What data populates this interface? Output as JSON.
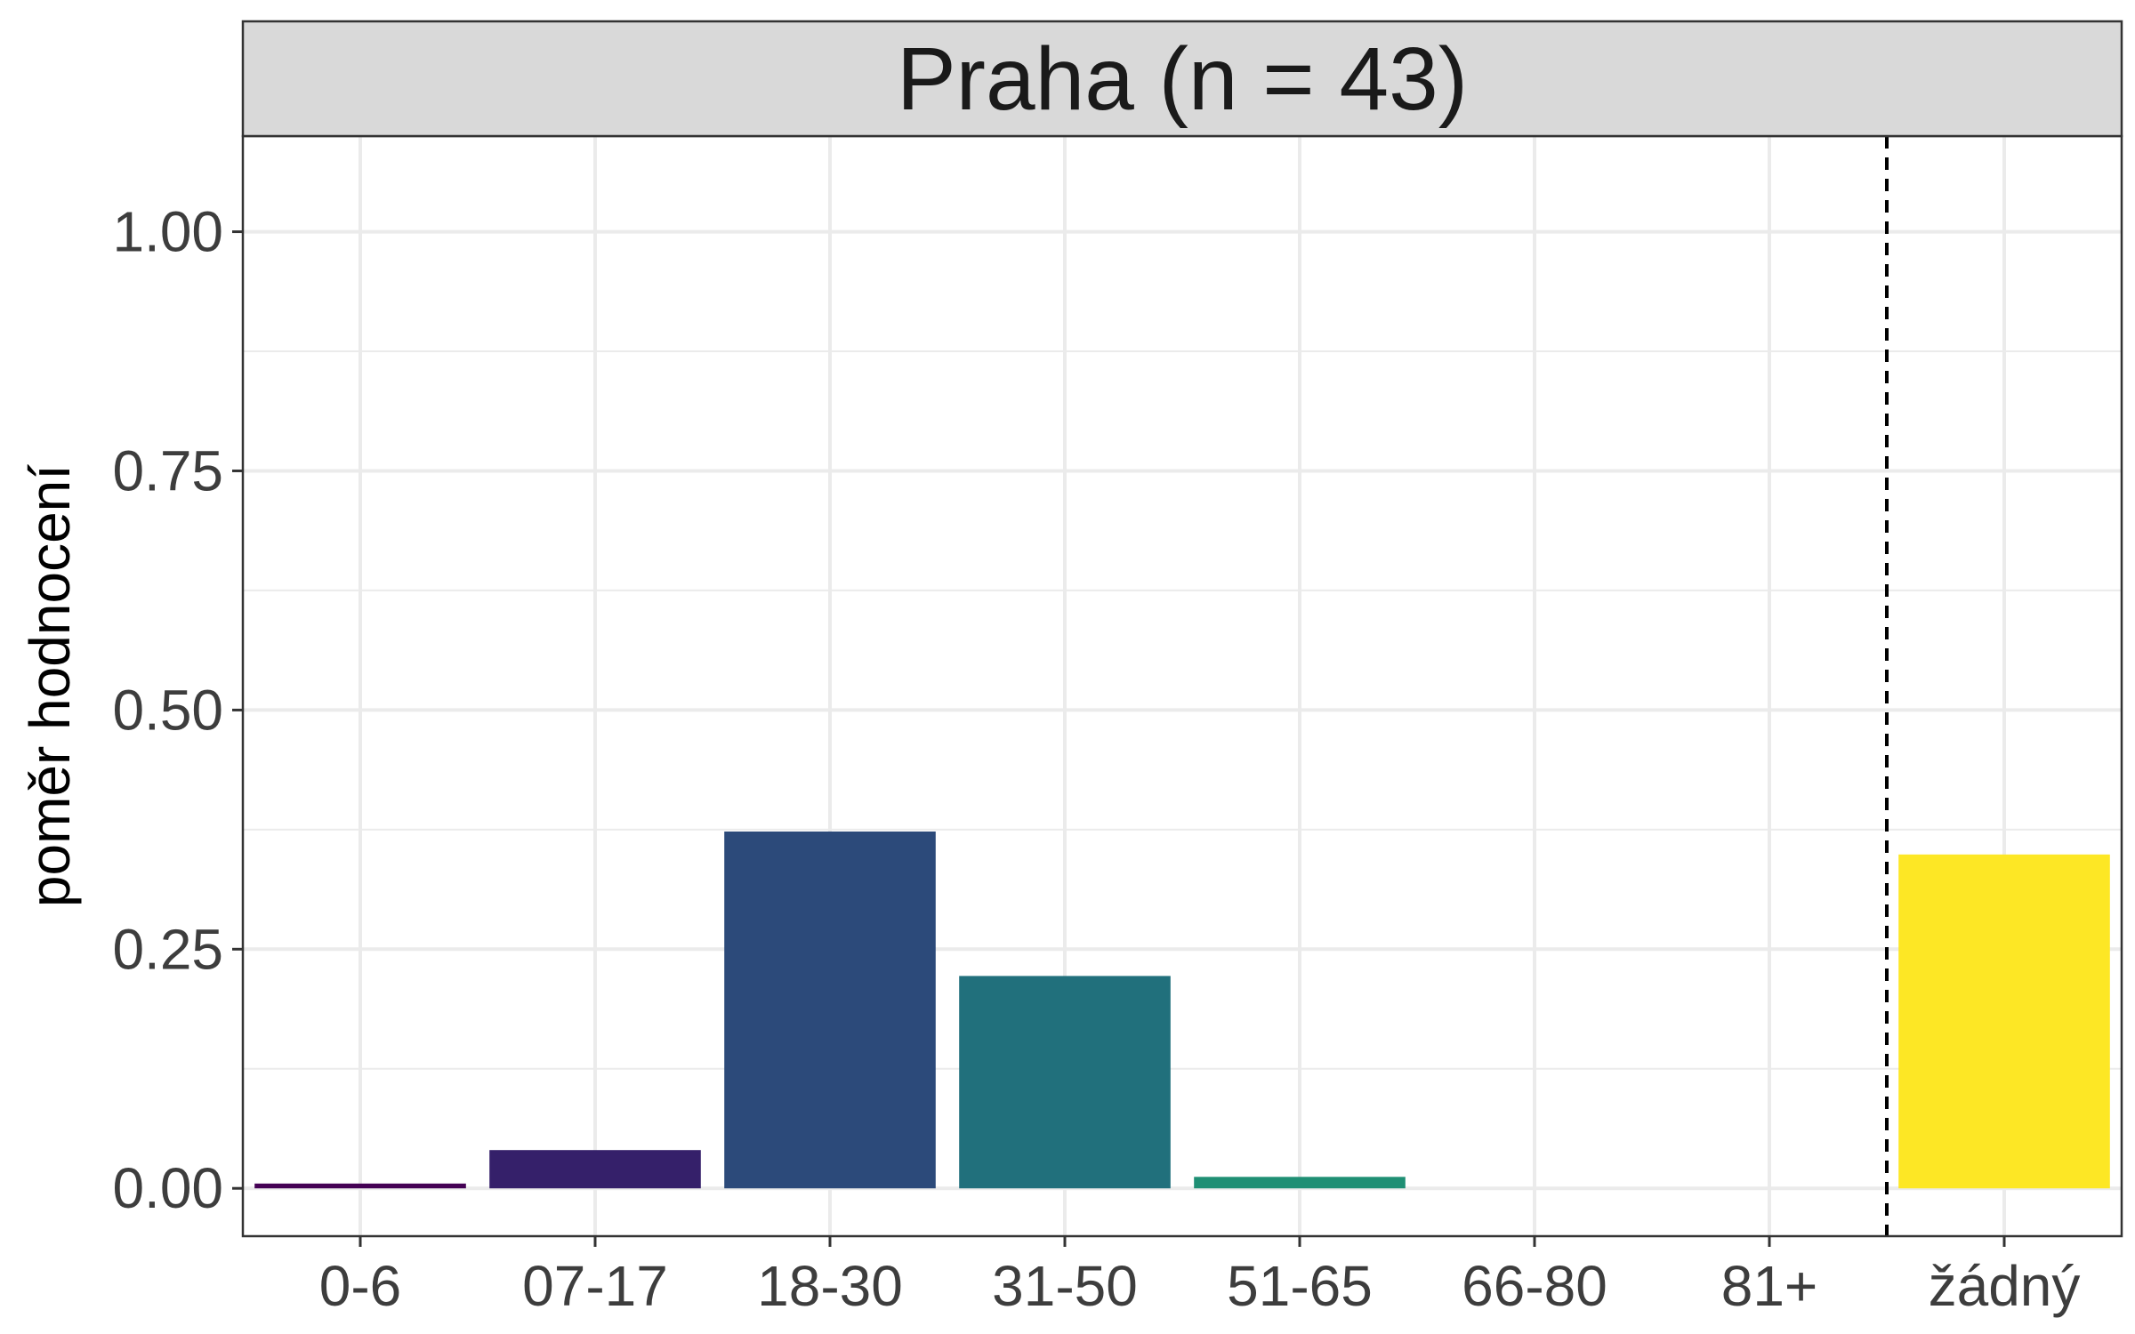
{
  "chart_data": {
    "type": "bar",
    "facet_title": "Praha (n = 43)",
    "xlabel": "",
    "ylabel": "poměr hodnocení",
    "ylim": [
      -0.05,
      1.1
    ],
    "y_ticks": [
      0,
      0.25,
      0.5,
      0.75,
      1
    ],
    "y_tick_labels": [
      "0.00",
      "0.25",
      "0.50",
      "0.75",
      "1.00"
    ],
    "categories": [
      "0-6",
      "07-17",
      "18-30",
      "31-50",
      "51-65",
      "66-80",
      "81+",
      "žádný"
    ],
    "values": [
      0.005,
      0.04,
      0.373,
      0.222,
      0.012,
      0,
      0,
      0.349
    ],
    "colors": [
      "#440154",
      "#35206a",
      "#2c4a7a",
      "#21707c",
      "#1f8f74",
      "#3fb56a",
      "#a3d43c",
      "#fde725"
    ],
    "reference_line": {
      "after_category": "81+",
      "style": "dashed"
    },
    "grid": true,
    "legend": "none"
  }
}
